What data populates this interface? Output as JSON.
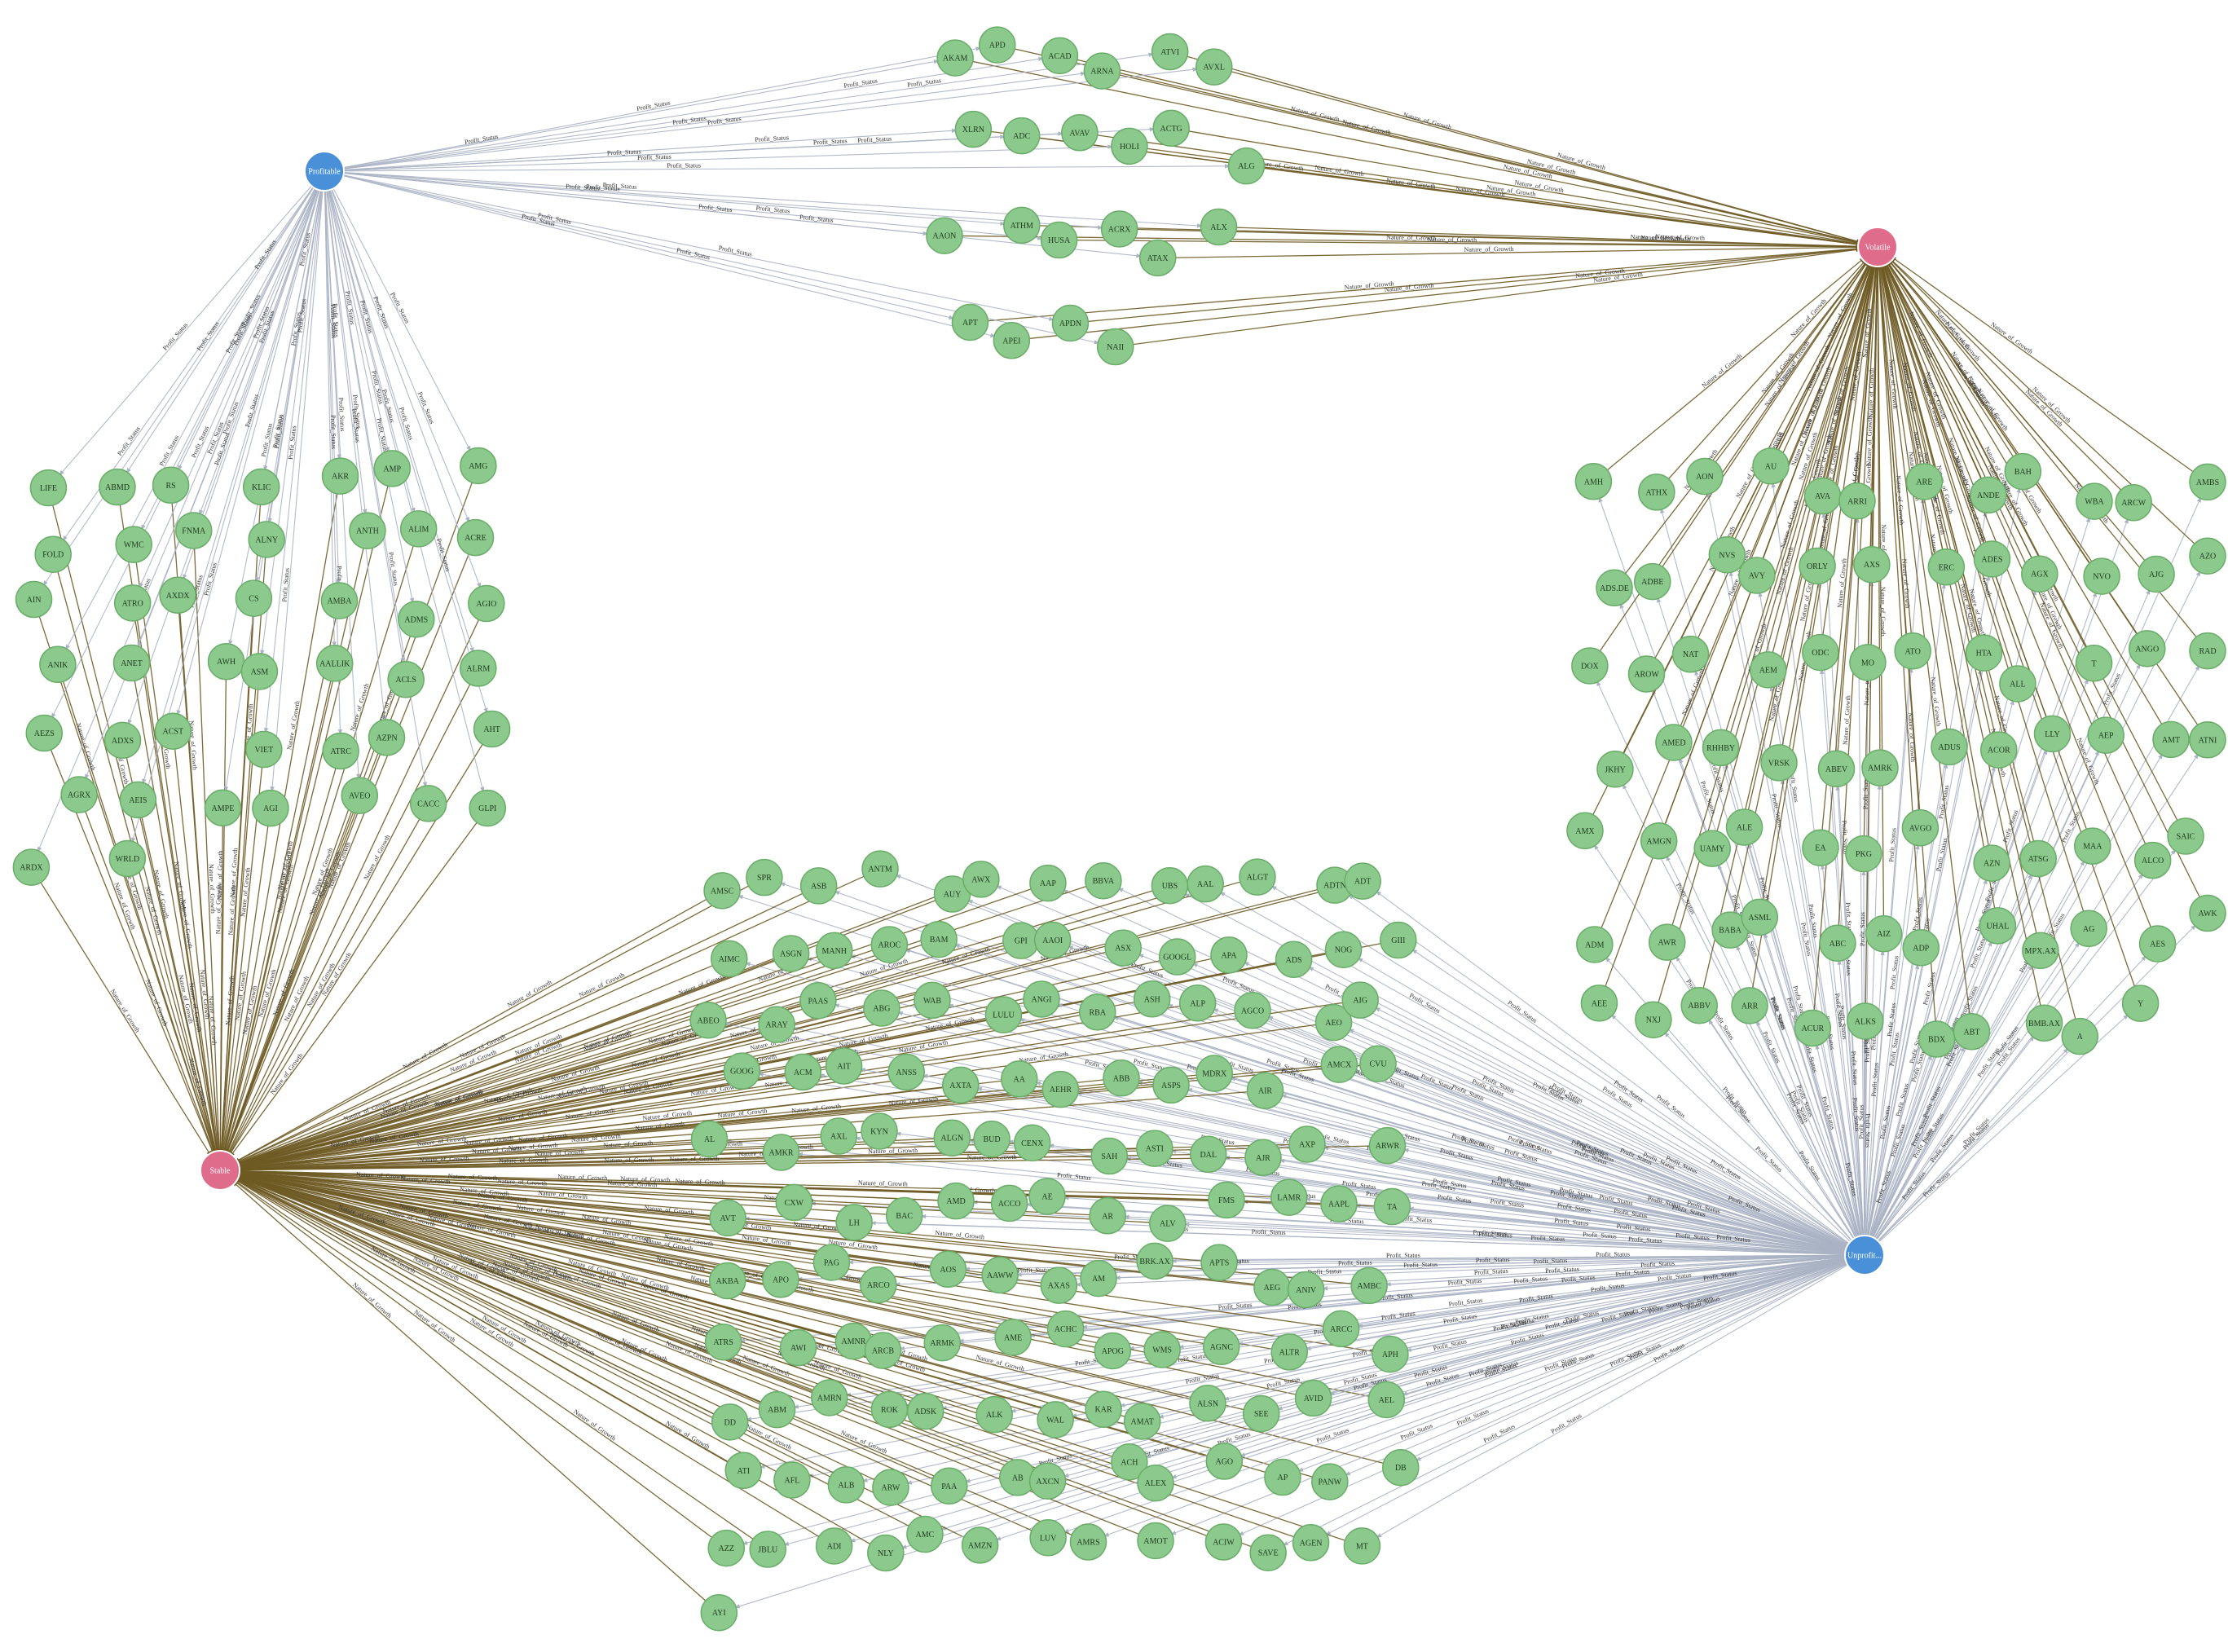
{
  "graph": {
    "hubs": {
      "profitable": {
        "label": "Profitable",
        "color": "#4a90d9"
      },
      "volatile": {
        "label": "Volatile",
        "color": "#e06c8c"
      },
      "stable": {
        "label": "Stable",
        "color": "#e06c8c"
      },
      "unprofitable": {
        "label": "Unprofit...",
        "color": "#4a90d9"
      }
    },
    "edge_labels": {
      "profit": "Profit_Status",
      "growth": "Nature_of_Growth"
    },
    "colors": {
      "node_fill": "#8cc98c",
      "node_stroke": "#6aae6a",
      "profit_edge": "#aab2c4",
      "growth_edge": "#6e5a23",
      "edge_text": "#333333"
    },
    "clusters": {
      "top": [
        "AKAM",
        "APD",
        "ACAD",
        "ARNA",
        "ATVI",
        "AVXL",
        "XLRN",
        "ADC",
        "AVAV",
        "HOLI",
        "ACTG",
        "ALG",
        "AAON",
        "ATHM",
        "HUSA",
        "ACRX",
        "ATAX",
        "ALX",
        "APT",
        "APEI",
        "APDN",
        "NAII"
      ],
      "left": [
        "LIFE",
        "ABMD",
        "RS",
        "KLIC",
        "AKR",
        "AMP",
        "AMG",
        "FOLD",
        "WMC",
        "FNMA",
        "ALNY",
        "ANTH",
        "ALIM",
        "ACRE",
        "AIN",
        "ATRO",
        "AXDX",
        "CS",
        "AMBA",
        "ADMS",
        "AGIO",
        "ANIK",
        "ANET",
        "AWH",
        "ASM",
        "AALLIK",
        "ACLS",
        "ALRM",
        "AEZS",
        "ADXS",
        "ACST",
        "VIET",
        "ATRC",
        "AZPN",
        "AHT",
        "AGRX",
        "AEIS",
        "AMPE",
        "AGI",
        "AVEO",
        "CACC",
        "GLPI",
        "ARDX",
        "WRLD"
      ],
      "right": [
        "AMH",
        "ATHX",
        "AON",
        "AU",
        "AVA",
        "ARRI",
        "ARE",
        "ANDE",
        "BAH",
        "WBA",
        "ARCW",
        "AMBS",
        "ADS.DE",
        "ADBE",
        "NVS",
        "AVY",
        "ORLY",
        "AXS",
        "ERC",
        "ADES",
        "AGX",
        "NVO",
        "AJG",
        "AZO",
        "DOX",
        "AROW",
        "NAT",
        "AEM",
        "ODC",
        "MO",
        "ATO",
        "HTA",
        "ALL",
        "T",
        "ANGO",
        "RAD",
        "JKHY",
        "AMED",
        "RHHBY",
        "VRSK",
        "ABEV",
        "AMRK",
        "ADUS",
        "ACOR",
        "LLY",
        "AEP",
        "AMT",
        "ATNI",
        "AMX",
        "AMGN",
        "UAMY",
        "ALE",
        "EA",
        "PKG",
        "AVGO",
        "AZN",
        "ATSG",
        "MAA",
        "ALCO",
        "SAIC",
        "ADM",
        "AWR",
        "BABA",
        "ASML",
        "ABC",
        "AIZ",
        "ADP",
        "UHAL",
        "MPX.AX",
        "AG",
        "AES",
        "AWK",
        "AEE",
        "NXJ",
        "ABBV",
        "ARR",
        "ACUR",
        "ALKS",
        "BDX",
        "ABT",
        "BMB.AX",
        "A",
        "Y"
      ],
      "bottom": [
        "AMSC",
        "SPR",
        "ASB",
        "ANTM",
        "AUY",
        "AWX",
        "AAP",
        "BBVA",
        "UBS",
        "AAL",
        "ALGT",
        "ADTN",
        "ADT",
        "AIMC",
        "ASGN",
        "MANH",
        "AROC",
        "BAM",
        "GPI",
        "AAOI",
        "ASX",
        "GOOGL",
        "APA",
        "ADS",
        "NOG",
        "GIII",
        "ABEO",
        "ARAY",
        "PAAS",
        "ABG",
        "WAB",
        "LULU",
        "ANGI",
        "RBA",
        "ASH",
        "ALP",
        "AGCO",
        "AEO",
        "AIG",
        "GOOG",
        "ACM",
        "AIT",
        "ANSS",
        "AXTA",
        "AA",
        "AEHR",
        "ABB",
        "ASPS",
        "MDRX",
        "AIR",
        "AMCX",
        "CVU",
        "AL",
        "AMKR",
        "AXL",
        "KYN",
        "ALGN",
        "BUD",
        "CENX",
        "SAH",
        "ASTI",
        "DAL",
        "AJR",
        "AXP",
        "ARWR",
        "AVT",
        "CXW",
        "LH",
        "BAC",
        "AMD",
        "ACCO",
        "AE",
        "AR",
        "ALV",
        "FMS",
        "LAMR",
        "AAPL",
        "TA",
        "AKBA",
        "APO",
        "PAG",
        "ARCO",
        "AOS",
        "AAWW",
        "AXAS",
        "AM",
        "BRK.AX",
        "APTS",
        "AEG",
        "ANIV",
        "AMBC",
        "ATRS",
        "AWI",
        "AMNR",
        "ARCB",
        "ARMK",
        "AME",
        "ACHC",
        "APOG",
        "WMS",
        "AGNC",
        "ALTR",
        "ARCC",
        "APH",
        "DD",
        "ABM",
        "AMRN",
        "ROK",
        "ADSK",
        "ALK",
        "WAL",
        "KAR",
        "AMAT",
        "ALSN",
        "SEE",
        "AVID",
        "AEL",
        "ATI",
        "AFL",
        "ALB",
        "ARW",
        "PAA",
        "AB",
        "AXCN",
        "ACH",
        "ALEX",
        "AGO",
        "AP",
        "PANW",
        "DB",
        "AZZ",
        "JBLU",
        "ADI",
        "NLY",
        "AMC",
        "AMZN",
        "LUV",
        "AMRS",
        "AMOT",
        "ACIW",
        "SAVE",
        "AGEN",
        "MT",
        "AYI"
      ]
    }
  }
}
